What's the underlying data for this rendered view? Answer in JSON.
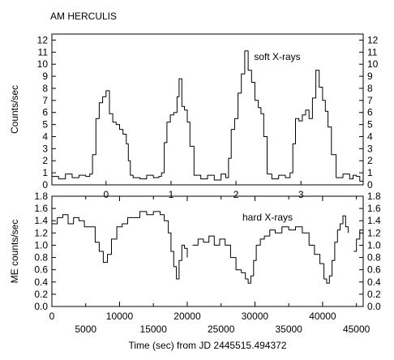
{
  "figure": {
    "title": "AM HERCULIS",
    "xlabel": "Time (sec) from JD 2445515.494372"
  },
  "chart_data": [
    {
      "type": "line",
      "panel": "top",
      "annotation": "soft X-rays",
      "ylabel": "Counts/sec",
      "xlim": [
        0,
        46000
      ],
      "ylim": [
        0,
        12.5
      ],
      "yticks": [
        0,
        1,
        2,
        3,
        4,
        5,
        6,
        7,
        8,
        9,
        10,
        11,
        12
      ],
      "phase_axis": {
        "labels": [
          "0",
          "1",
          "2",
          "3"
        ],
        "x": [
          8000,
          17600,
          27200,
          36800
        ]
      },
      "series": [
        {
          "x": [
            0,
            1000,
            2000,
            3000,
            4000,
            5000,
            5600,
            6000,
            6500,
            7000,
            7500,
            8000,
            8500,
            9000,
            9500,
            10000,
            10500,
            11000,
            11300,
            11600,
            12000,
            13000,
            14000,
            15000,
            15800,
            16200,
            16600,
            17000,
            17500,
            18000,
            18500,
            18800,
            19200,
            19600,
            20000,
            20400,
            21000,
            22000,
            23000,
            24000,
            25000,
            25700,
            26100,
            26500,
            27000,
            27500,
            28000,
            28500,
            29000,
            29500,
            30000,
            30500,
            30900,
            31300,
            31800,
            32500,
            33500,
            34500,
            35200,
            35600,
            36000,
            36500,
            37000,
            37500,
            38000,
            38500,
            39000,
            39500,
            40000,
            40400,
            40800,
            41300,
            42000,
            43000,
            44000,
            44500,
            45000,
            45500,
            46000
          ],
          "y": [
            0.7,
            0.5,
            0.9,
            0.6,
            0.8,
            0.7,
            0.9,
            2.5,
            5.5,
            6.8,
            7.3,
            7.8,
            5.9,
            5.2,
            5.0,
            4.6,
            4.2,
            3.4,
            2.0,
            0.8,
            0.6,
            0.5,
            0.8,
            0.6,
            0.7,
            1.0,
            3.5,
            5.2,
            5.8,
            6.0,
            7.3,
            8.8,
            6.5,
            6.2,
            5.2,
            3.2,
            0.8,
            0.5,
            0.8,
            0.4,
            0.9,
            0.6,
            2.2,
            4.6,
            5.5,
            7.6,
            9.2,
            11.1,
            9.5,
            8.5,
            7.0,
            6.4,
            5.9,
            4.0,
            0.9,
            0.5,
            0.8,
            0.6,
            1.0,
            3.4,
            5.5,
            5.3,
            5.8,
            6.2,
            5.5,
            7.2,
            9.5,
            8.1,
            7.0,
            6.1,
            4.8,
            2.5,
            0.6,
            0.9,
            0.5,
            0.8,
            0.7,
            0.3,
            0.6
          ]
        }
      ]
    },
    {
      "type": "line",
      "panel": "bottom",
      "annotation": "hard X-rays",
      "ylabel": "ME counts/sec",
      "xlim": [
        0,
        46000
      ],
      "ylim": [
        0,
        1.8
      ],
      "yticks": [
        0.0,
        0.2,
        0.4,
        0.6,
        0.8,
        1.0,
        1.2,
        1.4,
        1.6,
        1.8
      ],
      "xticks_major": [
        0,
        10000,
        20000,
        30000,
        40000
      ],
      "xticks_minor": [
        5000,
        15000,
        25000,
        35000,
        45000
      ],
      "series": [
        {
          "x": [
            0,
            800,
            1600,
            2400,
            3200,
            4000,
            4800,
            5600,
            6400,
            7000,
            7600,
            8200,
            8800,
            9600,
            10400,
            11200,
            12000,
            13000,
            14000,
            15000,
            16000,
            16600,
            17200,
            17600,
            18000,
            18400,
            18800,
            19200,
            19600,
            20000
          ],
          "y": [
            1.35,
            1.45,
            1.5,
            1.35,
            1.45,
            1.4,
            1.3,
            1.3,
            1.05,
            0.9,
            0.72,
            0.85,
            1.1,
            1.3,
            1.35,
            1.45,
            1.45,
            1.55,
            1.5,
            1.55,
            1.5,
            1.4,
            1.2,
            0.9,
            0.65,
            0.45,
            0.75,
            1.0,
            0.95,
            0.8
          ]
        },
        {
          "x": [
            20800,
            21600,
            22400,
            23200,
            24000,
            24800,
            25600,
            26400,
            27200,
            28000,
            28600,
            29000,
            29400,
            29800,
            30200,
            30800,
            31400,
            32200,
            33000,
            34000,
            35000,
            36000,
            37000,
            38000,
            38800,
            39600,
            40200,
            40600,
            41000,
            41400,
            41800,
            42200,
            42600,
            43000,
            43400,
            43800
          ],
          "y": [
            1.0,
            1.1,
            1.05,
            1.15,
            1.0,
            1.1,
            1.0,
            0.8,
            0.6,
            0.55,
            0.45,
            0.38,
            0.5,
            0.75,
            1.0,
            1.1,
            1.15,
            1.25,
            1.2,
            1.3,
            1.25,
            1.3,
            1.2,
            1.0,
            0.85,
            0.7,
            0.45,
            0.38,
            0.5,
            0.75,
            1.05,
            1.25,
            1.35,
            1.48,
            1.3,
            1.2
          ]
        },
        {
          "x": [
            44600,
            45000,
            45500,
            46000
          ],
          "y": [
            0.9,
            1.1,
            1.25,
            1.3
          ]
        }
      ]
    }
  ]
}
